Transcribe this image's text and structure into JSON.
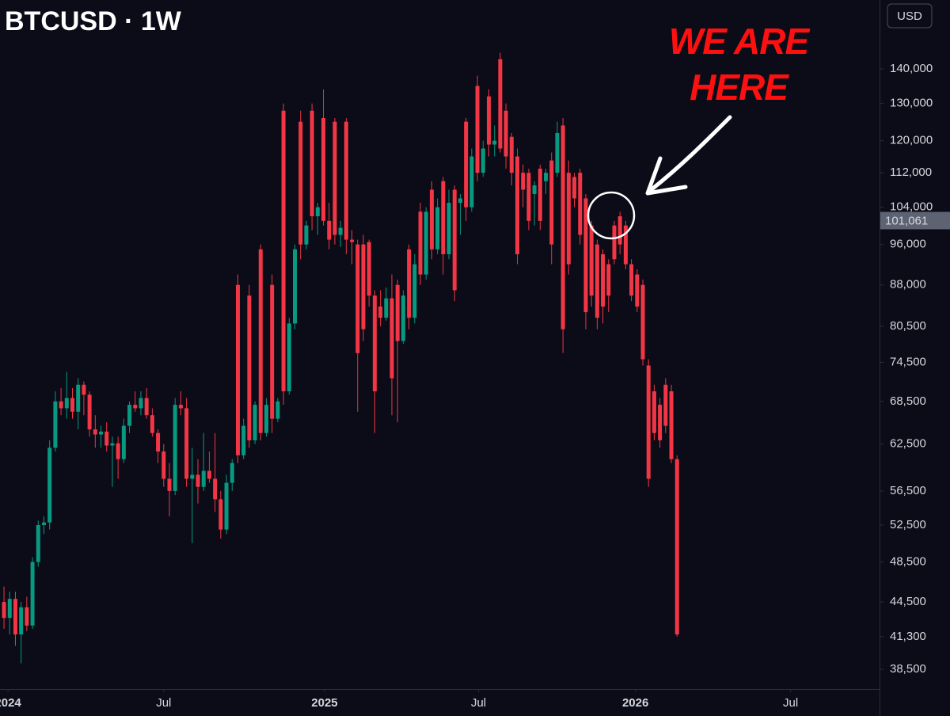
{
  "chart_data": {
    "type": "candlestick",
    "title": "BTCUSD · 1W",
    "currency": "USD",
    "annotation": [
      "WE ARE",
      "HERE"
    ],
    "log_scale": true,
    "grid": false,
    "up_color": "#089981",
    "down_color": "#f23645",
    "annotation_color": "#ff1010",
    "ylim": [
      36900,
      162400
    ],
    "yticks": [
      {
        "value": 140000,
        "label": "140,000"
      },
      {
        "value": 130000,
        "label": "130,000"
      },
      {
        "value": 120000,
        "label": "120,000"
      },
      {
        "value": 112000,
        "label": "112,000"
      },
      {
        "value": 104000,
        "label": "104,000"
      },
      {
        "value": 96000,
        "label": "96,000"
      },
      {
        "value": 88000,
        "label": "88,000"
      },
      {
        "value": 80500,
        "label": "80,500"
      },
      {
        "value": 74500,
        "label": "74,500"
      },
      {
        "value": 68500,
        "label": "68,500"
      },
      {
        "value": 62500,
        "label": "62,500"
      },
      {
        "value": 56500,
        "label": "56,500"
      },
      {
        "value": 52500,
        "label": "52,500"
      },
      {
        "value": 48500,
        "label": "48,500"
      },
      {
        "value": 44500,
        "label": "44,500"
      },
      {
        "value": 41300,
        "label": "41,300"
      },
      {
        "value": 38500,
        "label": "38,500"
      }
    ],
    "last_price": {
      "value": 101061,
      "label": "101,061"
    },
    "xlim": [
      -0.7,
      153.5
    ],
    "xticks": [
      {
        "value": 0.7,
        "label": "2024"
      },
      {
        "value": 28,
        "label": "Jul"
      },
      {
        "value": 56.2,
        "label": "2025"
      },
      {
        "value": 83.2,
        "label": "Jul"
      },
      {
        "value": 110.7,
        "label": "2026"
      },
      {
        "value": 137.9,
        "label": "Jul"
      }
    ],
    "candles": {
      "open": [
        44500,
        43000,
        44800,
        41500,
        44000,
        42300,
        48500,
        52500,
        52800,
        62000,
        68500,
        67500,
        69000,
        67000,
        71000,
        69500,
        64500,
        63800,
        64200,
        62300,
        62600,
        60500,
        65000,
        68000,
        67500,
        69000,
        66500,
        64000,
        61500,
        58000,
        56500,
        68000,
        67500,
        58000,
        58500,
        57000,
        59000,
        58000,
        55500,
        52000,
        57500,
        88000,
        61000,
        86000,
        63000,
        95000,
        64000,
        88000,
        66000,
        128000,
        70000,
        81000,
        125000,
        96000,
        128000,
        102000,
        126000,
        101000,
        125000,
        98000,
        125000,
        97000,
        96000,
        96000,
        96500,
        86000,
        84000,
        82000,
        85500,
        88000,
        78000,
        95000,
        82000,
        103000,
        90000,
        108000,
        95000,
        110000,
        94000,
        108000,
        105000,
        125000,
        104000,
        135000,
        112000,
        132000,
        119000,
        143000,
        128000,
        121000,
        116000,
        112000,
        112000,
        107000,
        113000,
        110000,
        115000,
        112000,
        124000,
        112000,
        111000,
        112000,
        106000,
        100000,
        96000,
        94000,
        92000,
        100000,
        102000,
        100000,
        92000,
        90000,
        88000,
        74000,
        70000,
        68000,
        71000,
        70000,
        60500
      ],
      "high": [
        46000,
        45500,
        45500,
        44500,
        45000,
        49000,
        53000,
        53500,
        63000,
        70000,
        70500,
        73000,
        70500,
        72000,
        71500,
        70000,
        66500,
        65000,
        65500,
        63500,
        63500,
        66000,
        68500,
        70000,
        70000,
        70500,
        67500,
        64500,
        62500,
        60000,
        69000,
        70000,
        69000,
        62000,
        60500,
        64000,
        61500,
        64000,
        56500,
        58500,
        60500,
        90000,
        66000,
        88000,
        68500,
        96000,
        69000,
        90000,
        69000,
        130000,
        82000,
        96000,
        128000,
        101000,
        130000,
        105000,
        134000,
        105000,
        126000,
        101000,
        126000,
        99000,
        97000,
        98000,
        97000,
        87000,
        87000,
        87500,
        90000,
        89000,
        87000,
        96000,
        94000,
        105000,
        104000,
        110000,
        106000,
        111000,
        108000,
        109000,
        107000,
        126000,
        118000,
        138000,
        120000,
        134000,
        124000,
        145000,
        130000,
        122000,
        118000,
        114000,
        113000,
        110000,
        114000,
        113000,
        117000,
        125000,
        126000,
        115000,
        112000,
        113000,
        107000,
        101000,
        97000,
        95000,
        93000,
        101000,
        103000,
        101000,
        93000,
        91000,
        89000,
        75000,
        71000,
        69000,
        72000,
        71000,
        61000
      ],
      "low": [
        42000,
        41500,
        40500,
        39000,
        41800,
        42000,
        48000,
        51500,
        52000,
        61500,
        66500,
        66000,
        66000,
        64500,
        66500,
        63500,
        62000,
        62000,
        61500,
        57000,
        58000,
        60000,
        64000,
        67000,
        66500,
        66000,
        63500,
        60000,
        57000,
        53500,
        56000,
        66500,
        57000,
        50500,
        55000,
        56500,
        57500,
        54000,
        51000,
        51500,
        56500,
        60000,
        60500,
        62000,
        62500,
        63000,
        63500,
        64000,
        65500,
        68000,
        69500,
        80000,
        93000,
        95000,
        99000,
        98000,
        100000,
        95000,
        96000,
        95500,
        94000,
        92000,
        67000,
        78000,
        84000,
        64000,
        80500,
        81500,
        66500,
        65500,
        77500,
        80000,
        81000,
        88000,
        89000,
        93000,
        94000,
        90000,
        93000,
        85000,
        98000,
        101000,
        103000,
        110000,
        111000,
        116000,
        116000,
        117000,
        113000,
        109000,
        92000,
        104000,
        99000,
        100000,
        99000,
        107000,
        92000,
        111000,
        76000,
        90000,
        104000,
        96000,
        80000,
        84000,
        80000,
        81000,
        83000,
        92000,
        94000,
        91000,
        85000,
        83000,
        74000,
        57000,
        63000,
        62000,
        64000,
        60000,
        41300
      ],
      "close": [
        43000,
        44800,
        41500,
        44000,
        42300,
        48500,
        52500,
        52800,
        62000,
        68500,
        67500,
        69000,
        67000,
        71000,
        69500,
        64500,
        63800,
        64200,
        62300,
        62600,
        60500,
        65000,
        68000,
        67500,
        69000,
        66500,
        64000,
        61500,
        58000,
        56500,
        68000,
        67500,
        58000,
        58500,
        57000,
        59000,
        58000,
        55500,
        52000,
        57500,
        60000,
        61000,
        65000,
        63000,
        68000,
        64000,
        68000,
        66000,
        68500,
        70000,
        81000,
        95000,
        96000,
        100000,
        102000,
        104000,
        101000,
        97000,
        98000,
        99500,
        97000,
        96500,
        76000,
        80000,
        86000,
        70000,
        82000,
        85500,
        72000,
        78000,
        86000,
        82000,
        92000,
        90000,
        103000,
        95000,
        104000,
        94000,
        105000,
        87000,
        106000,
        104000,
        116000,
        112000,
        118000,
        119000,
        120000,
        118000,
        116000,
        112000,
        94000,
        108000,
        101000,
        109000,
        101000,
        112000,
        96000,
        122000,
        80000,
        92000,
        106000,
        98000,
        83000,
        86000,
        82000,
        84000,
        86000,
        93000,
        96000,
        92000,
        86000,
        84000,
        75000,
        58000,
        64000,
        63000,
        65000,
        60500,
        41500
      ]
    }
  }
}
